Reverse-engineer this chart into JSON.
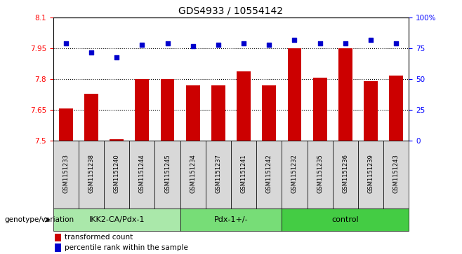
{
  "title": "GDS4933 / 10554142",
  "samples": [
    "GSM1151233",
    "GSM1151238",
    "GSM1151240",
    "GSM1151244",
    "GSM1151245",
    "GSM1151234",
    "GSM1151237",
    "GSM1151241",
    "GSM1151242",
    "GSM1151232",
    "GSM1151235",
    "GSM1151236",
    "GSM1151239",
    "GSM1151243"
  ],
  "red_values": [
    7.66,
    7.73,
    7.51,
    7.8,
    7.8,
    7.77,
    7.77,
    7.84,
    7.77,
    7.95,
    7.81,
    7.95,
    7.79,
    7.82
  ],
  "blue_values": [
    79,
    72,
    68,
    78,
    79,
    77,
    78,
    79,
    78,
    82,
    79,
    79,
    82,
    79
  ],
  "groups": [
    {
      "label": "IKK2-CA/Pdx-1",
      "start": 0,
      "end": 5,
      "color": "#aae8aa"
    },
    {
      "label": "Pdx-1+/-",
      "start": 5,
      "end": 9,
      "color": "#77dd77"
    },
    {
      "label": "control",
      "start": 9,
      "end": 14,
      "color": "#44cc44"
    }
  ],
  "ylim_left": [
    7.5,
    8.1
  ],
  "ylim_right": [
    0,
    100
  ],
  "yticks_left": [
    7.5,
    7.65,
    7.8,
    7.95,
    8.1
  ],
  "yticks_right": [
    0,
    25,
    50,
    75,
    100
  ],
  "ytick_labels_left": [
    "7.5",
    "7.65",
    "7.8",
    "7.95",
    "8.1"
  ],
  "ytick_labels_right": [
    "0",
    "25",
    "50",
    "75",
    "100%"
  ],
  "bar_color": "#cc0000",
  "dot_color": "#0000cc",
  "bar_width": 0.55,
  "genotype_label": "genotype/variation",
  "legend_red": "transformed count",
  "legend_blue": "percentile rank within the sample",
  "group_box_color": "#d8d8d8",
  "grid_dotted_vals": [
    7.65,
    7.8,
    7.95
  ],
  "title_fontsize": 10,
  "tick_fontsize": 7.5,
  "label_fontsize": 7.5,
  "sample_fontsize": 6.0,
  "group_fontsize": 8
}
